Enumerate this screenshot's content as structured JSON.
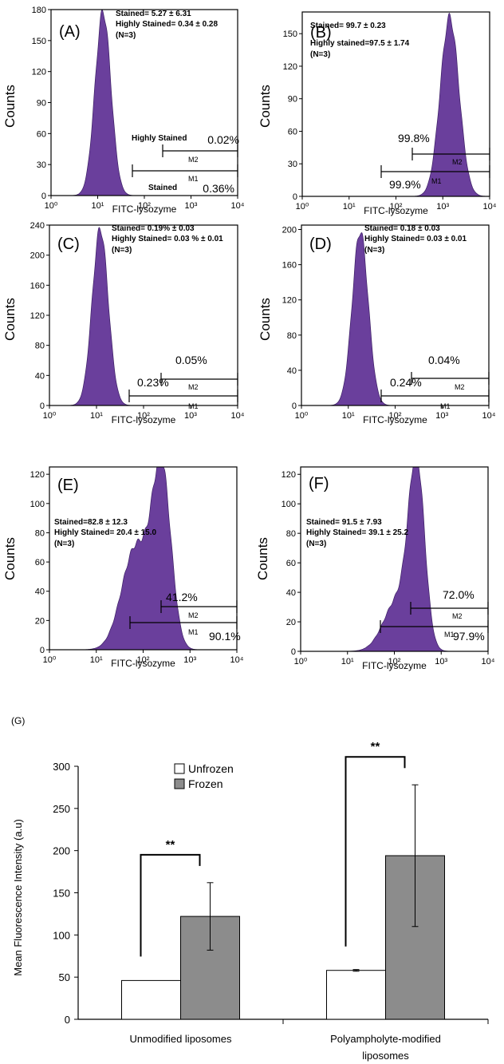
{
  "chart_data": [
    {
      "type": "histogram",
      "panel": "(A)",
      "ylabel": "Counts",
      "xlabel": "FITC-lysozyme",
      "xscale": "log",
      "xlim": [
        1,
        10000
      ],
      "ylim": [
        0,
        180
      ],
      "yticks": [
        "0",
        "30",
        "60",
        "90",
        "120",
        "150",
        "180"
      ],
      "xticks": [
        "10⁰",
        "10¹",
        "10²",
        "10³",
        "10⁴"
      ],
      "stats": [
        "Stained= 5.27 ± 6.31",
        "Highly Stained= 0.34 ± 0.28",
        "(N=3)"
      ],
      "peak": {
        "center": 13,
        "height": 178,
        "width": 0.17
      },
      "gates": [
        {
          "name": "M1",
          "from": 10,
          "to": 10000,
          "y": 30
        },
        {
          "name": "M2",
          "from": 60,
          "to": 10000,
          "y": 55
        }
      ],
      "percent_labels": [
        "0.02%",
        "0.36%"
      ],
      "gate_labels": [
        "Highly  Stained",
        "Stained"
      ]
    },
    {
      "type": "histogram",
      "panel": "(B)",
      "ylabel": "Counts",
      "xlabel": "FITC-lysozyme",
      "xscale": "log",
      "xlim": [
        1,
        10000
      ],
      "ylim": [
        0,
        170
      ],
      "yticks": [
        "0",
        "30",
        "60",
        "90",
        "120",
        "150"
      ],
      "xticks": [
        "10⁰",
        "10¹",
        "10²",
        "10³",
        "10⁴"
      ],
      "stats": [
        "Stained= 99.7 ± 0.23",
        "Highly stained=97.5 ± 1.74",
        "(N=3)"
      ],
      "peak": {
        "center": 1400,
        "height": 165,
        "width": 0.2
      },
      "gates": [
        {
          "name": "M1",
          "from": 70,
          "to": 10000,
          "y": 28
        },
        {
          "name": "M2",
          "from": 270,
          "to": 10000,
          "y": 50
        }
      ],
      "percent_labels": [
        "99.8%",
        "99.9%"
      ]
    },
    {
      "type": "histogram",
      "panel": "(C)",
      "ylabel": "Counts",
      "xlabel": "FITC-lysozyme",
      "xscale": "log",
      "xlim": [
        1,
        10000
      ],
      "ylim": [
        0,
        240
      ],
      "yticks": [
        "0",
        "40",
        "80",
        "120",
        "160",
        "200",
        "240"
      ],
      "xticks": [
        "10⁰",
        "10¹",
        "10²",
        "10³",
        "10⁴"
      ],
      "stats": [
        "Stained= 0.19% ± 0.03",
        "Highly Stained= 0.03 % ± 0.01",
        "(N=3)"
      ],
      "peak": {
        "center": 12,
        "height": 235,
        "width": 0.17
      },
      "gates": [
        {
          "name": "M1",
          "from": 55,
          "to": 10000,
          "y": 30
        },
        {
          "name": "M2",
          "from": 250,
          "to": 10000,
          "y": 58
        }
      ],
      "percent_labels": [
        "0.05%",
        "0.23%"
      ]
    },
    {
      "type": "histogram",
      "panel": "(D)",
      "ylabel": "Counts",
      "xlabel": "FITC-lysozyme",
      "xscale": "log",
      "xlim": [
        1,
        10000
      ],
      "ylim": [
        0,
        205
      ],
      "yticks": [
        "0",
        "40",
        "80",
        "120",
        "160",
        "200"
      ],
      "xticks": [
        "10⁰",
        "10¹",
        "10²",
        "10³",
        "10⁴"
      ],
      "stats": [
        "Stained= 0.18 ± 0.03",
        "Highly Stained= 0.03 ±  0.01",
        "(N=3)"
      ],
      "peak": {
        "center": 18,
        "height": 198,
        "width": 0.17
      },
      "gates": [
        {
          "name": "M1",
          "from": 75,
          "to": 10000,
          "y": 26
        },
        {
          "name": "M2",
          "from": 350,
          "to": 10000,
          "y": 48
        }
      ],
      "percent_labels": [
        "0.04%",
        "0.24%"
      ]
    },
    {
      "type": "histogram",
      "panel": "(E)",
      "ylabel": "Counts",
      "xlabel": "FITC-lysozyme",
      "xscale": "log",
      "xlim": [
        1,
        10000
      ],
      "ylim": [
        0,
        125
      ],
      "yticks": [
        "0",
        "20",
        "40",
        "60",
        "80",
        "100",
        "120"
      ],
      "xticks": [
        "10⁰",
        "10¹",
        "10²",
        "10³",
        "10⁴"
      ],
      "stats": [
        "Stained=82.8 ± 12.3",
        "Highly Stained= 20.4 ± 15.0",
        "(N=3)"
      ],
      "peak": {
        "center": 250,
        "height": 118,
        "width": 0.2,
        "shoulder": {
          "center": 70,
          "height": 70,
          "width": 0.3
        }
      },
      "gates": [
        {
          "name": "M1",
          "from": 55,
          "to": 10000,
          "y": 17
        },
        {
          "name": "M2",
          "from": 250,
          "to": 10000,
          "y": 29
        }
      ],
      "percent_labels": [
        "41.2%",
        "90.1%"
      ]
    },
    {
      "type": "histogram",
      "panel": "(F)",
      "ylabel": "Counts",
      "xlabel": "FITC-lysozyme",
      "xscale": "log",
      "xlim": [
        1,
        10000
      ],
      "ylim": [
        0,
        125
      ],
      "yticks": [
        "0",
        "20",
        "40",
        "60",
        "80",
        "100",
        "120"
      ],
      "xticks": [
        "10⁰",
        "10¹",
        "10²",
        "10³",
        "10⁴"
      ],
      "stats": [
        "Stained= 91.5 ± 7.93",
        "Highly Stained= 39.1 ± 25.2",
        "(N=3)"
      ],
      "peak": {
        "center": 300,
        "height": 120,
        "width": 0.17,
        "shoulder": {
          "center": 120,
          "height": 35,
          "width": 0.3
        }
      },
      "gates": [
        {
          "name": "M1",
          "from": 60,
          "to": 10000,
          "y": 16
        },
        {
          "name": "M2",
          "from": 270,
          "to": 10000,
          "y": 30
        }
      ],
      "percent_labels": [
        "72.0%",
        "97.9%"
      ]
    },
    {
      "type": "bar",
      "panel": "(G)",
      "ylabel": "Mean Fluorescence Intensity (a.u)",
      "ylim": [
        0,
        300
      ],
      "yticks": [
        "0",
        "50",
        "100",
        "150",
        "200",
        "250",
        "300"
      ],
      "categories": [
        "Unmodified liposomes",
        "Polyampholyte-modified liposomes"
      ],
      "series": [
        {
          "name": "Unfrozen",
          "values": [
            46,
            58
          ],
          "errors": [
            0,
            1
          ],
          "color": "#ffffff"
        },
        {
          "name": "Frozen",
          "values": [
            122,
            194
          ],
          "errors": [
            40,
            84
          ],
          "color": "#8c8c8c"
        }
      ],
      "significance": [
        "**",
        "**"
      ],
      "legend": "top-left"
    }
  ]
}
